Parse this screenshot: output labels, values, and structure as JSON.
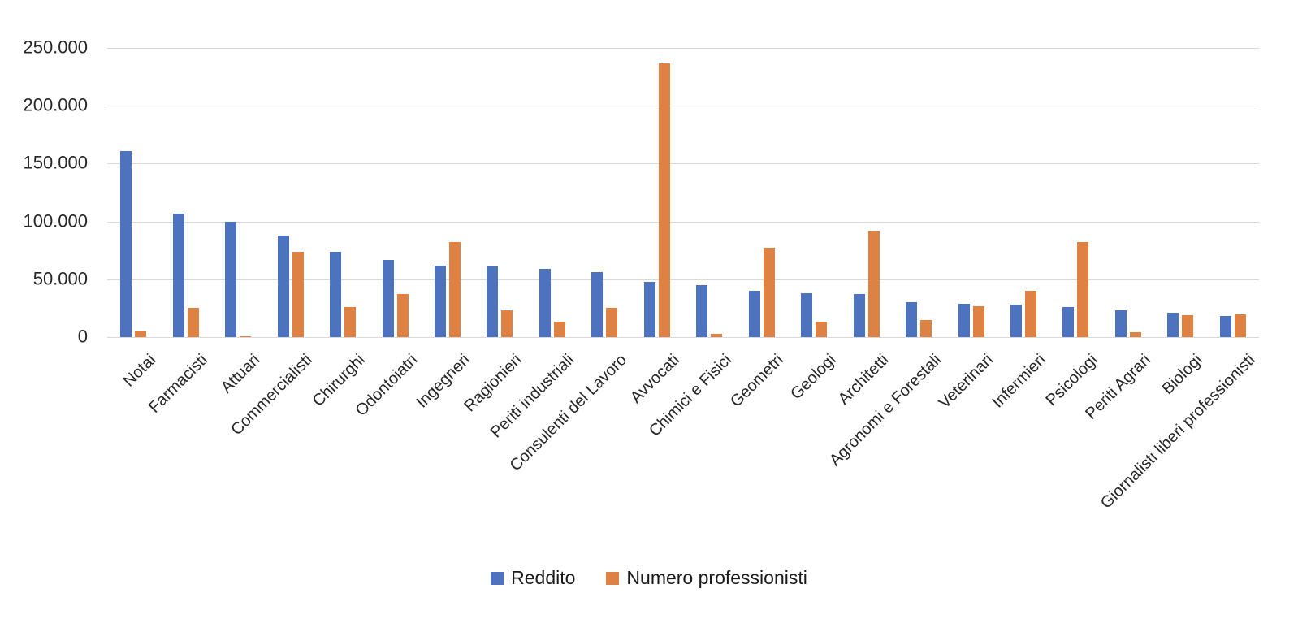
{
  "chart_data": {
    "type": "bar",
    "title": "",
    "categories": [
      "Notai",
      "Farmacisti",
      "Attuari",
      "Commercialisti",
      "Chirurghi",
      "Odontoiatri",
      "Ingegneri",
      "Ragionieri",
      "Periti industriali",
      "Consulenti del Lavoro",
      "Avvocati",
      "Chimici e Fisici",
      "Geometri",
      "Geologi",
      "Architetti",
      "Agronomi e Forestali",
      "Veterinari",
      "Infermieri",
      "Psicologi",
      "Periti Agrari",
      "Biologi",
      "Giornalisti liberi professionisti"
    ],
    "series": [
      {
        "name": "Reddito",
        "color": "#4d72be",
        "values": [
          161000,
          107000,
          100000,
          88000,
          74000,
          67000,
          62000,
          61000,
          59000,
          56000,
          48000,
          45000,
          40000,
          38000,
          37000,
          30000,
          29000,
          28000,
          26000,
          23000,
          21000,
          18000
        ]
      },
      {
        "name": "Numero professionisti",
        "color": "#dd8243",
        "values": [
          5000,
          25000,
          1000,
          74000,
          26000,
          37000,
          82000,
          23000,
          13000,
          25000,
          237000,
          3000,
          77000,
          13000,
          92000,
          15000,
          27000,
          40000,
          82000,
          4000,
          19000,
          20000
        ]
      }
    ],
    "y_axis": {
      "min": 0,
      "max": 250000,
      "tick_step": 50000,
      "tick_labels": [
        "0",
        "50.000",
        "100.000",
        "150.000",
        "200.000",
        "250.000"
      ]
    },
    "grid": true,
    "gridline_color": "#d9d9d9",
    "legend_position": "bottom"
  }
}
